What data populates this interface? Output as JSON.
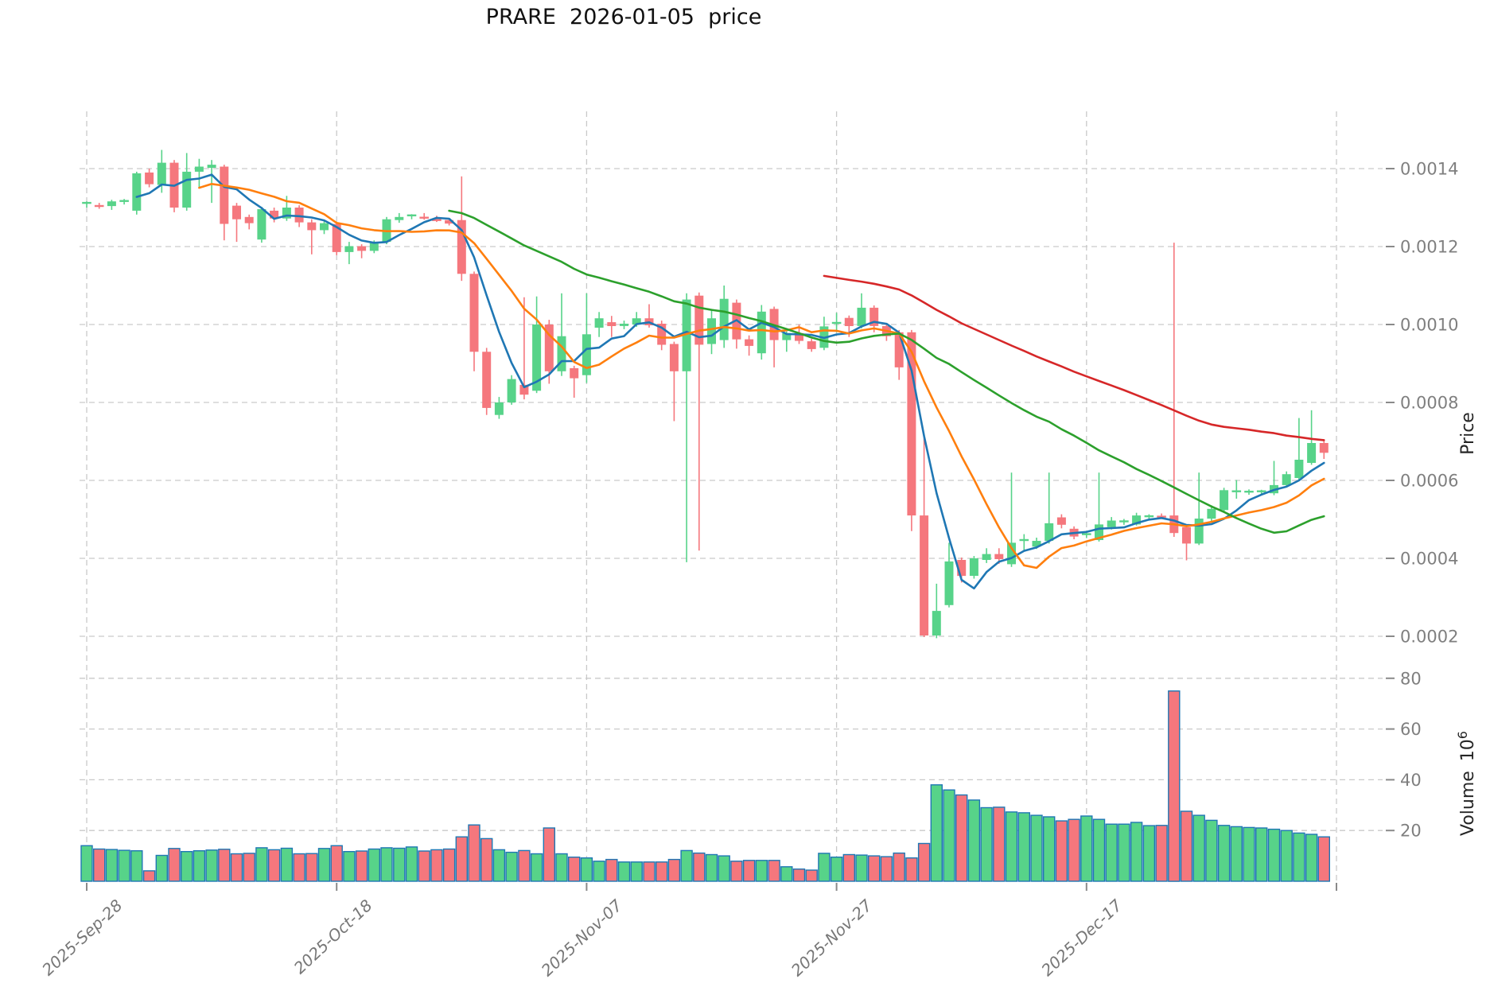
{
  "title": "PRARE  2026-01-05  price",
  "axes": {
    "price_label": "Price",
    "volume_label": "Volume",
    "volume_scale_base": "10",
    "volume_scale_exp": "6"
  },
  "colors": {
    "up_candle": "#57d389",
    "down_candle": "#f5777d",
    "volume_edge": "#1f77b4",
    "grid": "#c9c9c9",
    "tick_text": "#7f7f7f",
    "date_text": "#777777",
    "ma5": "#1f77b4",
    "ma10": "#ff7f0e",
    "ma30": "#2ca02c",
    "ma60": "#d62728"
  },
  "chart_data": {
    "type": "candlestick",
    "title": "PRARE  2026-01-05  price",
    "ylabel_price": "Price",
    "ylabel_volume": "Volume 10^6",
    "grid": true,
    "price_axis_ticks": {
      "values": [
        0.0002,
        0.0004,
        0.0006,
        0.0008,
        0.001,
        0.0012,
        0.0014
      ],
      "labels": [
        "0.0002",
        "0.0004",
        "0.0006",
        "0.0008",
        "0.0010",
        "0.0012",
        "0.0014"
      ]
    },
    "volume_axis_ticks": {
      "values": [
        20,
        40,
        60,
        80
      ],
      "labels": [
        "20",
        "40",
        "60",
        "80"
      ]
    },
    "x_gridline_days": [
      0,
      20,
      40,
      60,
      80,
      100
    ],
    "x_tick_labels": [
      "2025-Sep-28",
      "2025-Oct-18",
      "2025-Nov-07",
      "2025-Nov-27",
      "2025-Dec-17",
      ""
    ],
    "moving_averages": [
      {
        "period": 5,
        "color": "#1f77b4"
      },
      {
        "period": 10,
        "color": "#ff7f0e"
      },
      {
        "period": 30,
        "color": "#2ca02c"
      },
      {
        "period": 60,
        "color": "#d62728"
      }
    ],
    "dates": [
      "2025-09-28",
      "2025-09-29",
      "2025-09-30",
      "2025-10-01",
      "2025-10-02",
      "2025-10-03",
      "2025-10-04",
      "2025-10-05",
      "2025-10-06",
      "2025-10-07",
      "2025-10-08",
      "2025-10-09",
      "2025-10-10",
      "2025-10-11",
      "2025-10-12",
      "2025-10-13",
      "2025-10-14",
      "2025-10-15",
      "2025-10-16",
      "2025-10-17",
      "2025-10-18",
      "2025-10-19",
      "2025-10-20",
      "2025-10-21",
      "2025-10-22",
      "2025-10-23",
      "2025-10-24",
      "2025-10-25",
      "2025-10-26",
      "2025-10-27",
      "2025-10-28",
      "2025-10-29",
      "2025-10-30",
      "2025-10-31",
      "2025-11-01",
      "2025-11-02",
      "2025-11-03",
      "2025-11-04",
      "2025-11-05",
      "2025-11-06",
      "2025-11-07",
      "2025-11-08",
      "2025-11-09",
      "2025-11-10",
      "2025-11-11",
      "2025-11-12",
      "2025-11-13",
      "2025-11-14",
      "2025-11-15",
      "2025-11-16",
      "2025-11-17",
      "2025-11-18",
      "2025-11-19",
      "2025-11-20",
      "2025-11-21",
      "2025-11-22",
      "2025-11-23",
      "2025-11-24",
      "2025-11-25",
      "2025-11-26",
      "2025-11-27",
      "2025-11-28",
      "2025-11-29",
      "2025-11-30",
      "2025-12-01",
      "2025-12-02",
      "2025-12-03",
      "2025-12-04",
      "2025-12-05",
      "2025-12-06",
      "2025-12-07",
      "2025-12-08",
      "2025-12-09",
      "2025-12-10",
      "2025-12-11",
      "2025-12-12",
      "2025-12-13",
      "2025-12-14",
      "2025-12-15",
      "2025-12-16",
      "2025-12-17",
      "2025-12-18",
      "2025-12-19",
      "2025-12-20",
      "2025-12-21",
      "2025-12-22",
      "2025-12-23",
      "2025-12-24",
      "2025-12-25",
      "2025-12-26",
      "2025-12-27",
      "2025-12-28",
      "2025-12-29",
      "2025-12-30",
      "2025-12-31",
      "2026-01-01",
      "2026-01-02",
      "2026-01-03",
      "2026-01-04",
      "2026-01-05"
    ],
    "open": [
      0.00131,
      0.001308,
      0.001304,
      0.001315,
      0.001292,
      0.00139,
      0.001358,
      0.001415,
      0.0013,
      0.001392,
      0.001402,
      0.001405,
      0.001305,
      0.001276,
      0.001218,
      0.001292,
      0.001272,
      0.0013,
      0.001262,
      0.001242,
      0.001258,
      0.001186,
      0.001201,
      0.001189,
      0.001212,
      0.001268,
      0.001276,
      0.001279,
      0.001273,
      0.001268,
      0.001268,
      0.00113,
      0.00093,
      0.000768,
      0.0008,
      0.000845,
      0.00083,
      0.001,
      0.00088,
      0.000888,
      0.00087,
      0.000992,
      0.001006,
      0.000996,
      0.001,
      0.001016,
      0.001002,
      0.00095,
      0.00088,
      0.001074,
      0.00095,
      0.00096,
      0.001056,
      0.000962,
      0.000926,
      0.00104,
      0.00096,
      0.000978,
      0.000957,
      0.00094,
      0.001,
      0.001017,
      0.000996,
      0.001043,
      0.000996,
      0.00098,
      0.00098,
      0.00051,
      0.000202,
      0.00028,
      0.000396,
      0.000355,
      0.000396,
      0.000411,
      0.000385,
      0.000443,
      0.00043,
      0.000445,
      0.000505,
      0.000476,
      0.000458,
      0.000447,
      0.00048,
      0.000492,
      0.000487,
      0.000505,
      0.00051,
      0.00051,
      0.00048,
      0.000438,
      0.000502,
      0.000524,
      0.00057,
      0.00057,
      0.00057,
      0.000567,
      0.000588,
      0.000606,
      0.000645,
      0.000696
    ],
    "high": [
      0.001316,
      0.001312,
      0.00132,
      0.001322,
      0.001392,
      0.0014,
      0.001448,
      0.001422,
      0.00144,
      0.001425,
      0.001422,
      0.00141,
      0.001312,
      0.001282,
      0.001302,
      0.0013,
      0.00133,
      0.001306,
      0.00127,
      0.001266,
      0.001262,
      0.001212,
      0.001206,
      0.001216,
      0.001276,
      0.001286,
      0.001283,
      0.001286,
      0.001279,
      0.001273,
      0.00138,
      0.001136,
      0.00094,
      0.000814,
      0.00087,
      0.00107,
      0.001072,
      0.001012,
      0.00108,
      0.000894,
      0.00108,
      0.001032,
      0.001022,
      0.00101,
      0.001032,
      0.001052,
      0.00101,
      0.000956,
      0.00108,
      0.001082,
      0.00104,
      0.0011,
      0.001064,
      0.000972,
      0.00105,
      0.001046,
      0.000982,
      0.001,
      0.000963,
      0.00102,
      0.00103,
      0.001023,
      0.00108,
      0.001049,
      0.001003,
      0.000986,
      0.000986,
      0.00071,
      0.000335,
      0.00044,
      0.000402,
      0.000406,
      0.000426,
      0.000426,
      0.00062,
      0.000462,
      0.000453,
      0.00062,
      0.000513,
      0.000482,
      0.000471,
      0.00062,
      0.000506,
      0.000501,
      0.000517,
      0.000513,
      0.000515,
      0.00121,
      0.000486,
      0.00062,
      0.000536,
      0.000581,
      0.000601,
      0.000577,
      0.000576,
      0.00065,
      0.000623,
      0.00076,
      0.00078,
      0.000702
    ],
    "low": [
      0.0013,
      0.001297,
      0.001294,
      0.001308,
      0.001282,
      0.001352,
      0.001338,
      0.001288,
      0.001292,
      0.00135,
      0.001312,
      0.001216,
      0.001212,
      0.001244,
      0.00121,
      0.001262,
      0.001266,
      0.00125,
      0.00118,
      0.001232,
      0.001178,
      0.001155,
      0.00117,
      0.001183,
      0.001206,
      0.001261,
      0.00127,
      0.001269,
      0.001263,
      0.001254,
      0.001112,
      0.00088,
      0.000768,
      0.000758,
      0.000794,
      0.000808,
      0.000824,
      0.000848,
      0.000868,
      0.000812,
      0.00085,
      0.000968,
      0.000968,
      0.000988,
      0.000994,
      0.000992,
      0.000934,
      0.000752,
      0.00039,
      0.00042,
      0.000924,
      0.00094,
      0.000938,
      0.00092,
      0.00091,
      0.00089,
      0.00093,
      0.00095,
      0.00093,
      0.000934,
      0.00098,
      0.000968,
      0.00099,
      0.00098,
      0.000958,
      0.000858,
      0.00047,
      0.000198,
      0.000195,
      0.000274,
      0.000338,
      0.000348,
      0.000388,
      0.000386,
      0.000378,
      0.000418,
      0.000424,
      0.000438,
      0.000477,
      0.000449,
      0.000452,
      0.000443,
      0.000474,
      0.000486,
      0.000484,
      0.000499,
      0.000502,
      0.000455,
      0.000395,
      0.000434,
      0.000496,
      0.000519,
      0.000553,
      0.000563,
      0.000564,
      0.000562,
      0.000584,
      0.0006,
      0.00064,
      0.000655
    ],
    "close": [
      0.001312,
      0.001304,
      0.001316,
      0.001317,
      0.001388,
      0.00136,
      0.001415,
      0.0013,
      0.001392,
      0.001405,
      0.00141,
      0.001258,
      0.00127,
      0.00126,
      0.001296,
      0.001272,
      0.0013,
      0.001262,
      0.001242,
      0.00126,
      0.001186,
      0.001201,
      0.001189,
      0.001212,
      0.00127,
      0.001276,
      0.00128,
      0.001274,
      0.001268,
      0.001259,
      0.00113,
      0.00093,
      0.000786,
      0.0008,
      0.00086,
      0.00082,
      0.001,
      0.00088,
      0.00097,
      0.000862,
      0.000975,
      0.001016,
      0.000996,
      0.001002,
      0.001016,
      0.000998,
      0.000948,
      0.00088,
      0.001064,
      0.000948,
      0.001016,
      0.001066,
      0.000962,
      0.000945,
      0.001033,
      0.00096,
      0.000978,
      0.000958,
      0.000937,
      0.000995,
      0.001004,
      0.000996,
      0.001043,
      0.000996,
      0.00097,
      0.00089,
      0.00051,
      0.000202,
      0.000265,
      0.000392,
      0.000355,
      0.0004,
      0.000411,
      0.000398,
      0.00044,
      0.000447,
      0.000445,
      0.00049,
      0.000486,
      0.000456,
      0.000462,
      0.000487,
      0.000497,
      0.000495,
      0.00051,
      0.000508,
      0.000507,
      0.000465,
      0.000438,
      0.000502,
      0.000527,
      0.000575,
      0.000572,
      0.000571,
      0.000572,
      0.000588,
      0.000616,
      0.000653,
      0.000696,
      0.000671
    ],
    "volume_millions": [
      14.0,
      12.7,
      12.5,
      12.2,
      12.0,
      4.1,
      10.2,
      12.9,
      11.7,
      12.0,
      12.3,
      12.6,
      10.8,
      11.0,
      13.2,
      12.4,
      13.0,
      10.8,
      10.9,
      12.9,
      14.0,
      11.7,
      11.9,
      12.7,
      13.2,
      13.0,
      13.5,
      11.9,
      12.4,
      12.7,
      17.5,
      22.2,
      16.8,
      12.4,
      11.4,
      12.1,
      10.8,
      21.0,
      10.8,
      9.5,
      9.2,
      7.9,
      8.6,
      7.6,
      7.6,
      7.6,
      7.6,
      8.6,
      12.1,
      11.1,
      10.5,
      10.0,
      7.9,
      8.2,
      8.2,
      8.2,
      5.7,
      4.8,
      4.4,
      11.0,
      9.5,
      10.5,
      10.3,
      10.0,
      9.7,
      11.1,
      9.2,
      14.9,
      38.0,
      36.0,
      34.0,
      32.0,
      29.0,
      29.2,
      27.3,
      27.0,
      26.0,
      25.4,
      23.8,
      24.4,
      25.7,
      24.4,
      22.5,
      22.5,
      23.2,
      21.9,
      22.0,
      75.0,
      27.6,
      26.0,
      24.0,
      22.0,
      21.5,
      21.2,
      21.0,
      20.5,
      20.0,
      19.0,
      18.5,
      17.5
    ]
  }
}
